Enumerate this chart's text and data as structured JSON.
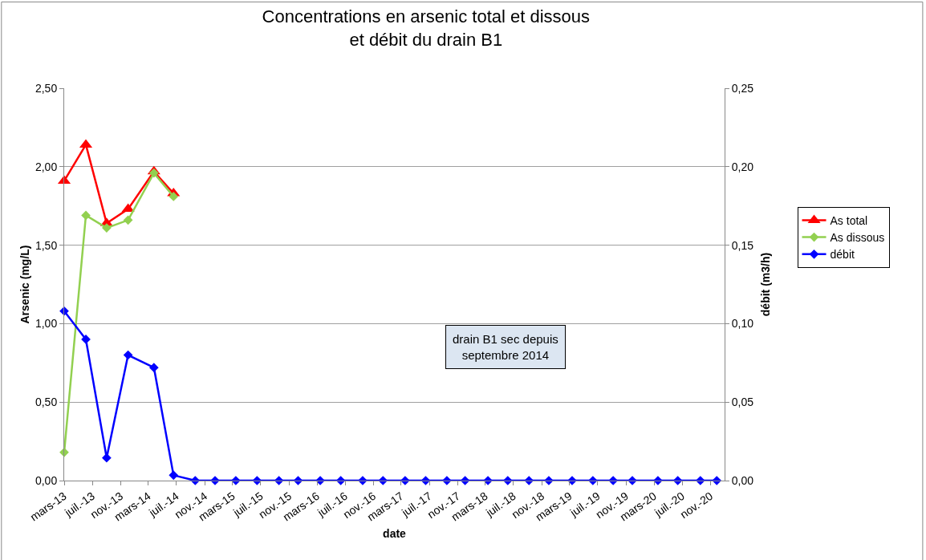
{
  "chart_data": {
    "type": "line",
    "title": "Concentrations en arsenic total et dissous\net débit du drain B1",
    "xlabel": "date",
    "ylabel": "Arsenic (mg/L)",
    "y2label": "débit (m3/h)",
    "annotations": [
      "drain B1 sec depuis\nseptembre 2014"
    ],
    "series": [
      {
        "name": "As total",
        "color": "#ff0000",
        "marker": "triangle",
        "x": [
          "2013-03-01",
          "2013-06-03",
          "2013-09-01",
          "2013-12-03",
          "2014-03-25",
          "2014-06-18"
        ],
        "values": [
          1.91,
          2.14,
          1.64,
          1.73,
          1.97,
          1.83
        ]
      },
      {
        "name": "As dissous",
        "color": "#92d050",
        "marker": "diamond",
        "x": [
          "2013-03-01",
          "2013-06-03",
          "2013-09-01",
          "2013-12-03",
          "2014-03-25",
          "2014-06-18"
        ],
        "values": [
          0.18,
          1.69,
          1.61,
          1.66,
          1.96,
          1.81
        ]
      },
      {
        "name": "débit",
        "color": "#0000ff",
        "marker": "diamond",
        "axis": "y2",
        "x": [
          "2013-03-01",
          "2013-06-03",
          "2013-09-01",
          "2013-12-03",
          "2014-03-25",
          "2014-06-18",
          "2014-09-20",
          "2014-12-15",
          "2015-03-15",
          "2015-06-15",
          "2015-09-18",
          "2015-12-10",
          "2016-03-15",
          "2016-06-12",
          "2016-09-15",
          "2016-12-12",
          "2017-03-18",
          "2017-06-15",
          "2017-09-15",
          "2017-12-03",
          "2018-03-12",
          "2018-06-06",
          "2018-09-06",
          "2018-12-01",
          "2019-03-12",
          "2019-06-10",
          "2019-09-06",
          "2019-11-28",
          "2020-03-18",
          "2020-06-12",
          "2020-09-18",
          "2020-11-28"
        ],
        "values": [
          0.108,
          0.09,
          0.0145,
          0.08,
          0.072,
          0.0034,
          0,
          0,
          0,
          0,
          0,
          0,
          0,
          0,
          0,
          0,
          0,
          0,
          0,
          0,
          0,
          0,
          0,
          0,
          0,
          0,
          0,
          0,
          0,
          0,
          0,
          0
        ]
      }
    ],
    "xlim": [
      "2013-03-01",
      "2021-01-01"
    ],
    "xticks": [
      {
        "value": "2013-03-01",
        "label": "mars-13"
      },
      {
        "value": "2013-07-01",
        "label": "juil.-13"
      },
      {
        "value": "2013-11-01",
        "label": "nov.-13"
      },
      {
        "value": "2014-03-01",
        "label": "mars-14"
      },
      {
        "value": "2014-07-01",
        "label": "juil.-14"
      },
      {
        "value": "2014-11-01",
        "label": "nov.-14"
      },
      {
        "value": "2015-03-01",
        "label": "mars-15"
      },
      {
        "value": "2015-07-01",
        "label": "juil.-15"
      },
      {
        "value": "2015-11-01",
        "label": "nov.-15"
      },
      {
        "value": "2016-03-01",
        "label": "mars-16"
      },
      {
        "value": "2016-07-01",
        "label": "juil.-16"
      },
      {
        "value": "2016-11-01",
        "label": "nov.-16"
      },
      {
        "value": "2017-03-01",
        "label": "mars-17"
      },
      {
        "value": "2017-07-01",
        "label": "juil.-17"
      },
      {
        "value": "2017-11-01",
        "label": "nov.-17"
      },
      {
        "value": "2018-03-01",
        "label": "mars-18"
      },
      {
        "value": "2018-07-01",
        "label": "juil.-18"
      },
      {
        "value": "2018-11-01",
        "label": "nov.-18"
      },
      {
        "value": "2019-03-01",
        "label": "mars-19"
      },
      {
        "value": "2019-07-01",
        "label": "juil.-19"
      },
      {
        "value": "2019-11-01",
        "label": "nov.-19"
      },
      {
        "value": "2020-03-01",
        "label": "mars-20"
      },
      {
        "value": "2020-07-01",
        "label": "juil.-20"
      },
      {
        "value": "2020-11-01",
        "label": "nov.-20"
      }
    ],
    "ylim": [
      0,
      2.5
    ],
    "yticks": [
      {
        "value": 0,
        "label": "0,00"
      },
      {
        "value": 0.5,
        "label": "0,50"
      },
      {
        "value": 1,
        "label": "1,00"
      },
      {
        "value": 1.5,
        "label": "1,50"
      },
      {
        "value": 2,
        "label": "2,00"
      },
      {
        "value": 2.5,
        "label": "2,50"
      }
    ],
    "y2lim": [
      0,
      0.25
    ],
    "y2ticks": [
      {
        "value": 0,
        "label": "0,00"
      },
      {
        "value": 0.05,
        "label": "0,05"
      },
      {
        "value": 0.1,
        "label": "0,10"
      },
      {
        "value": 0.15,
        "label": "0,15"
      },
      {
        "value": 0.2,
        "label": "0,20"
      },
      {
        "value": 0.25,
        "label": "0,25"
      }
    ],
    "grid": "y",
    "legend": "right",
    "line_style": "solid"
  }
}
